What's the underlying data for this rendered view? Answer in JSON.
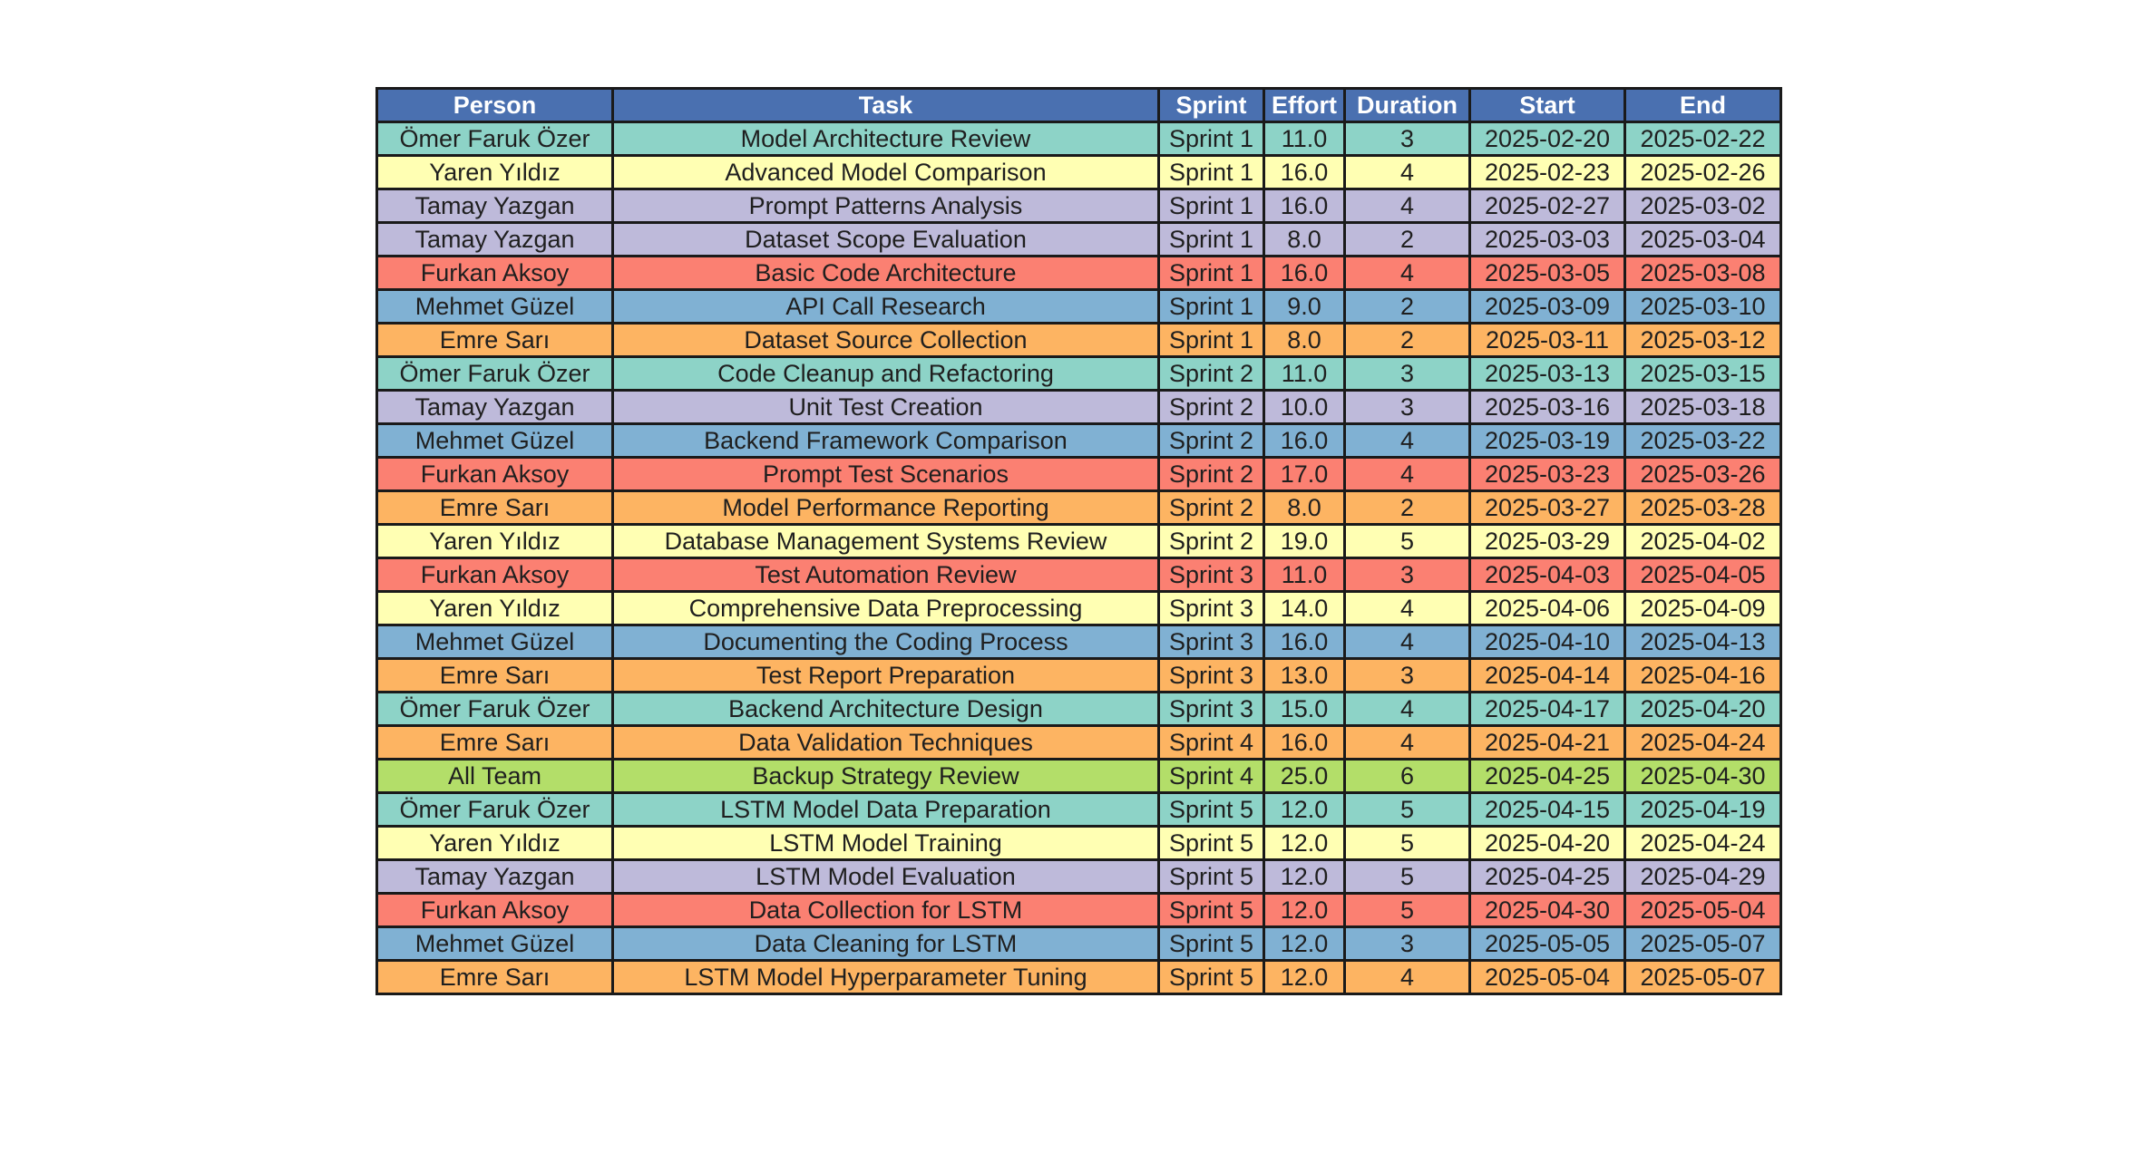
{
  "chart_data": {
    "type": "table",
    "header_color": "#4a70b0",
    "columns": [
      "Person",
      "Task",
      "Sprint",
      "Effort",
      "Duration",
      "Start",
      "End"
    ],
    "person_colors": {
      "Ömer Faruk Özer": "#8dd3c7",
      "Yaren Yıldız": "#ffffb3",
      "Tamay Yazgan": "#bebada",
      "Furkan Aksoy": "#fb8072",
      "Mehmet Güzel": "#80b1d3",
      "Emre Sarı": "#fdb462",
      "All Team": "#b3de69"
    },
    "rows": [
      [
        "Ömer Faruk Özer",
        "Model Architecture Review",
        "Sprint 1",
        "11.0",
        "3",
        "2025-02-20",
        "2025-02-22"
      ],
      [
        "Yaren Yıldız",
        "Advanced Model Comparison",
        "Sprint 1",
        "16.0",
        "4",
        "2025-02-23",
        "2025-02-26"
      ],
      [
        "Tamay Yazgan",
        "Prompt Patterns Analysis",
        "Sprint 1",
        "16.0",
        "4",
        "2025-02-27",
        "2025-03-02"
      ],
      [
        "Tamay Yazgan",
        "Dataset Scope Evaluation",
        "Sprint 1",
        "8.0",
        "2",
        "2025-03-03",
        "2025-03-04"
      ],
      [
        "Furkan Aksoy",
        "Basic Code Architecture",
        "Sprint 1",
        "16.0",
        "4",
        "2025-03-05",
        "2025-03-08"
      ],
      [
        "Mehmet Güzel",
        "API Call Research",
        "Sprint 1",
        "9.0",
        "2",
        "2025-03-09",
        "2025-03-10"
      ],
      [
        "Emre Sarı",
        "Dataset Source Collection",
        "Sprint 1",
        "8.0",
        "2",
        "2025-03-11",
        "2025-03-12"
      ],
      [
        "Ömer Faruk Özer",
        "Code Cleanup and Refactoring",
        "Sprint 2",
        "11.0",
        "3",
        "2025-03-13",
        "2025-03-15"
      ],
      [
        "Tamay Yazgan",
        "Unit Test Creation",
        "Sprint 2",
        "10.0",
        "3",
        "2025-03-16",
        "2025-03-18"
      ],
      [
        "Mehmet Güzel",
        "Backend Framework Comparison",
        "Sprint 2",
        "16.0",
        "4",
        "2025-03-19",
        "2025-03-22"
      ],
      [
        "Furkan Aksoy",
        "Prompt Test Scenarios",
        "Sprint 2",
        "17.0",
        "4",
        "2025-03-23",
        "2025-03-26"
      ],
      [
        "Emre Sarı",
        "Model Performance Reporting",
        "Sprint 2",
        "8.0",
        "2",
        "2025-03-27",
        "2025-03-28"
      ],
      [
        "Yaren Yıldız",
        "Database Management Systems Review",
        "Sprint 2",
        "19.0",
        "5",
        "2025-03-29",
        "2025-04-02"
      ],
      [
        "Furkan Aksoy",
        "Test Automation Review",
        "Sprint 3",
        "11.0",
        "3",
        "2025-04-03",
        "2025-04-05"
      ],
      [
        "Yaren Yıldız",
        "Comprehensive Data Preprocessing",
        "Sprint 3",
        "14.0",
        "4",
        "2025-04-06",
        "2025-04-09"
      ],
      [
        "Mehmet Güzel",
        "Documenting the Coding Process",
        "Sprint 3",
        "16.0",
        "4",
        "2025-04-10",
        "2025-04-13"
      ],
      [
        "Emre Sarı",
        "Test Report Preparation",
        "Sprint 3",
        "13.0",
        "3",
        "2025-04-14",
        "2025-04-16"
      ],
      [
        "Ömer Faruk Özer",
        "Backend Architecture Design",
        "Sprint 3",
        "15.0",
        "4",
        "2025-04-17",
        "2025-04-20"
      ],
      [
        "Emre Sarı",
        "Data Validation Techniques",
        "Sprint 4",
        "16.0",
        "4",
        "2025-04-21",
        "2025-04-24"
      ],
      [
        "All Team",
        "Backup Strategy Review",
        "Sprint 4",
        "25.0",
        "6",
        "2025-04-25",
        "2025-04-30"
      ],
      [
        "Ömer Faruk Özer",
        "LSTM Model Data Preparation",
        "Sprint 5",
        "12.0",
        "5",
        "2025-04-15",
        "2025-04-19"
      ],
      [
        "Yaren Yıldız",
        "LSTM Model Training",
        "Sprint 5",
        "12.0",
        "5",
        "2025-04-20",
        "2025-04-24"
      ],
      [
        "Tamay Yazgan",
        "LSTM Model Evaluation",
        "Sprint 5",
        "12.0",
        "5",
        "2025-04-25",
        "2025-04-29"
      ],
      [
        "Furkan Aksoy",
        "Data Collection for LSTM",
        "Sprint 5",
        "12.0",
        "5",
        "2025-04-30",
        "2025-05-04"
      ],
      [
        "Mehmet Güzel",
        "Data Cleaning for LSTM",
        "Sprint 5",
        "12.0",
        "3",
        "2025-05-05",
        "2025-05-07"
      ],
      [
        "Emre Sarı",
        "LSTM Model Hyperparameter Tuning",
        "Sprint 5",
        "12.0",
        "4",
        "2025-05-04",
        "2025-05-07"
      ]
    ]
  }
}
